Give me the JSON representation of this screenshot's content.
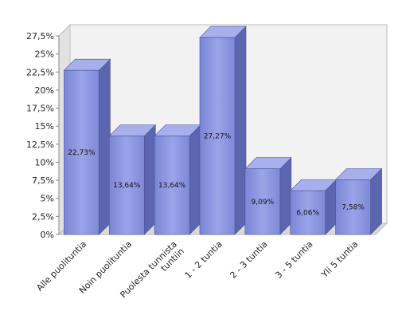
{
  "chart_data": {
    "type": "bar",
    "title": "",
    "xlabel": "",
    "ylabel": "",
    "categories": [
      "Alle puolituntia",
      "Noin puolituntia",
      "Puolesta tunnista tuntiin",
      "1 - 2 tuntia",
      "2 - 3 tuntia",
      "3 - 5 tuntia",
      "Yli 5 tuntia"
    ],
    "category_lines": [
      [
        "Alle puolituntia"
      ],
      [
        "Noin puolituntia"
      ],
      [
        "Puolesta tunnista",
        "tuntiin"
      ],
      [
        "1 - 2 tuntia"
      ],
      [
        "2 - 3 tuntia"
      ],
      [
        "3 - 5 tuntia"
      ],
      [
        "Yli 5 tuntia"
      ]
    ],
    "values": [
      22.73,
      13.64,
      13.64,
      27.27,
      9.09,
      6.06,
      7.58
    ],
    "data_labels": [
      "22,73%",
      "13,64%",
      "13,64%",
      "27,27%",
      "9,09%",
      "6,06%",
      "7,58%"
    ],
    "y_ticks": [
      0,
      2.5,
      5,
      7.5,
      10,
      12.5,
      15,
      17.5,
      20,
      22.5,
      25,
      27.5
    ],
    "y_tick_labels": [
      "0%",
      "2,5%",
      "5%",
      "7,5%",
      "10%",
      "12,5%",
      "15%",
      "17,5%",
      "20%",
      "22,5%",
      "25%",
      "27,5%"
    ],
    "ylim": [
      0,
      27.5
    ],
    "grid": false,
    "legend": "none",
    "colors": {
      "bar_front": "#8a95e0",
      "bar_side": "#5c66b0",
      "bar_top": "#a7b0ec",
      "wall": "#f0f0f0"
    }
  }
}
